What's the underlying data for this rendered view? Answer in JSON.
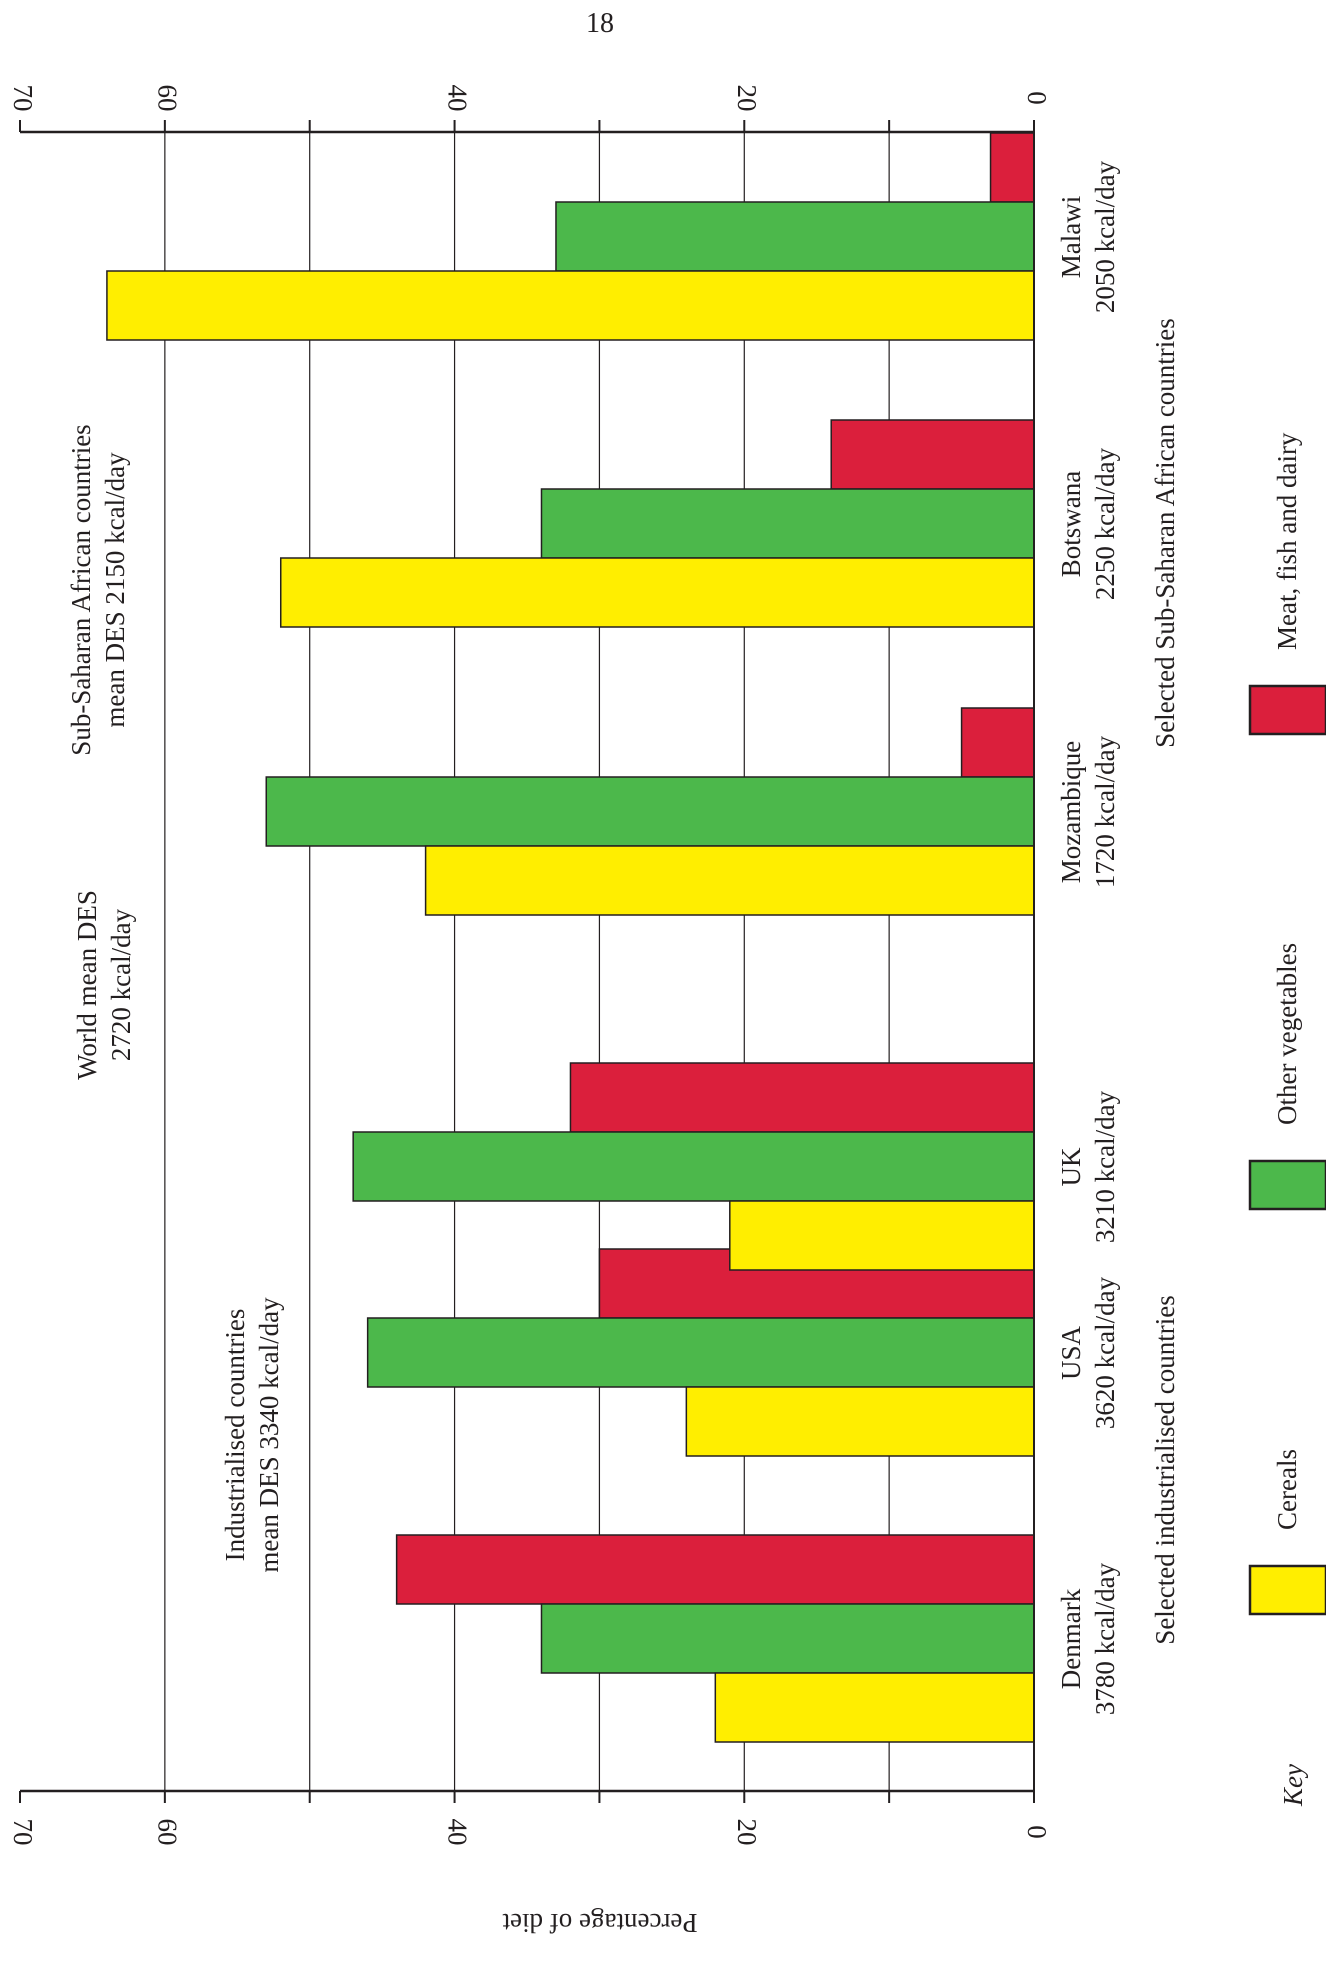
{
  "page_number": "18",
  "colors": {
    "cereals": "#ffee00",
    "other_vegetables": "#4cb84b",
    "meat_fish_dairy": "#db1f3c",
    "axis": "#231f20"
  },
  "annotations": {
    "world_mean_line1": "World mean DES",
    "world_mean_line2": "2720 kcal/day",
    "industrialised_line1": "Industrialised countries",
    "industrialised_line2": "mean DES 3340 kcal/day",
    "subsaharan_line1": "Sub-Saharan African countries",
    "subsaharan_line2": "mean DES 2150 kcal/day"
  },
  "group_labels": {
    "industrialised": "Selected industrialised countries",
    "subsaharan": "Selected Sub-Saharan African countries"
  },
  "key": {
    "title": "Key",
    "items": [
      "Cereals",
      "Other vegetables",
      "Meat, fish and dairy"
    ]
  },
  "chart_data": {
    "type": "bar",
    "orientation": "horizontal, page rotated 90°",
    "ylabel": "Percentage of diet",
    "ylim": [
      0,
      70
    ],
    "yticks": [
      0,
      20,
      40,
      60,
      70
    ],
    "grid": true,
    "categories": [
      {
        "name": "Denmark",
        "kcal": "3780 kcal/day"
      },
      {
        "name": "USA",
        "kcal": "3620 kcal/day"
      },
      {
        "name": "UK",
        "kcal": "3210 kcal/day"
      },
      {
        "name": "Mozambique",
        "kcal": "1720 kcal/day"
      },
      {
        "name": "Botswana",
        "kcal": "2250 kcal/day"
      },
      {
        "name": "Malawi",
        "kcal": "2050 kcal/day"
      }
    ],
    "series": [
      {
        "name": "Cereals",
        "values": [
          22,
          24,
          21,
          42,
          52,
          64
        ]
      },
      {
        "name": "Other vegetables",
        "values": [
          34,
          46,
          47,
          53,
          34,
          33
        ]
      },
      {
        "name": "Meat, fish and dairy",
        "values": [
          44,
          30,
          32,
          5,
          14,
          3
        ]
      }
    ]
  }
}
